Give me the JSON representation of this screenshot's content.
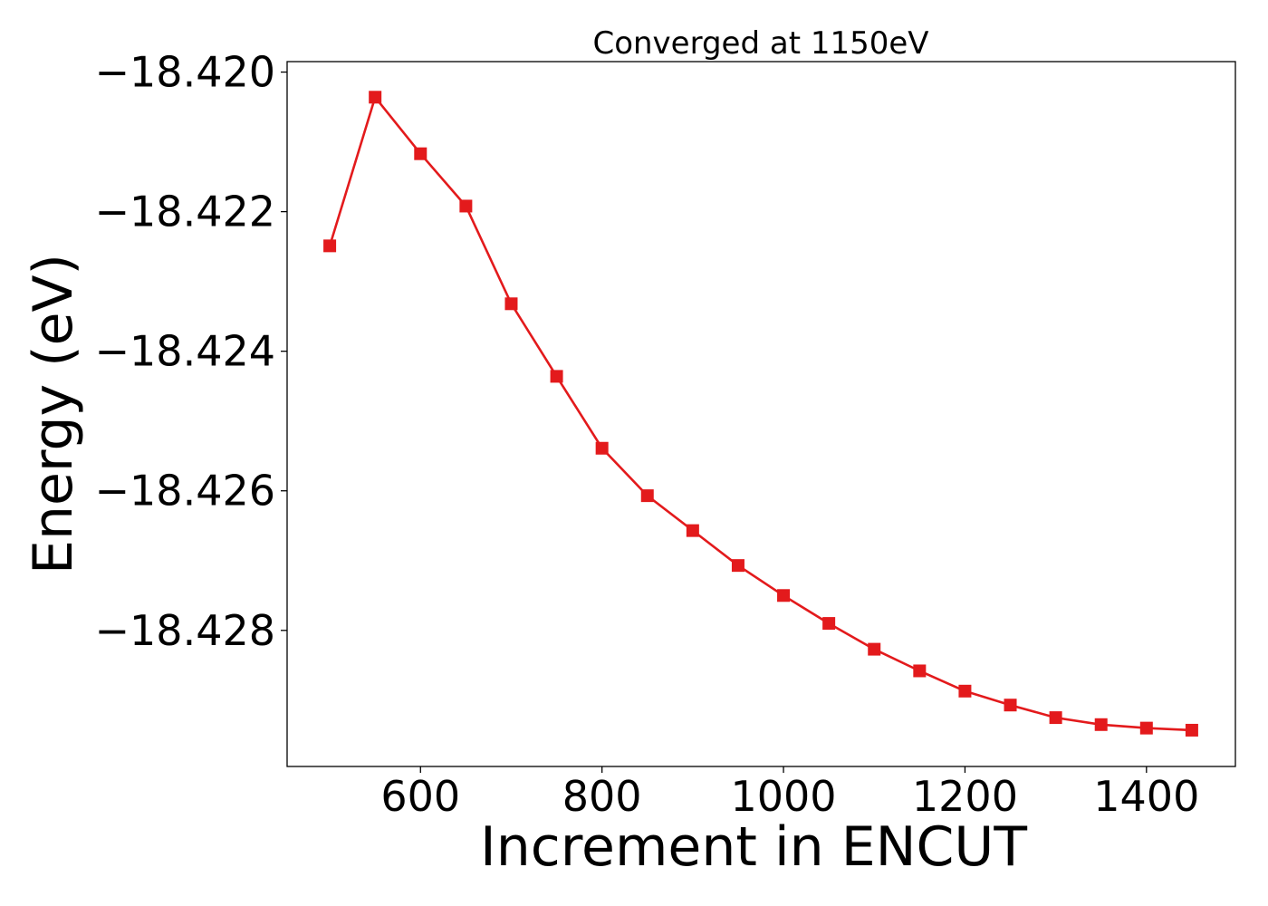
{
  "chart_data": {
    "type": "line",
    "title": "Converged at 1150eV",
    "xlabel": "Increment in ENCUT",
    "ylabel": "Energy (eV)",
    "xlim": [
      453,
      1498
    ],
    "ylim": [
      -18.42995,
      -18.41985
    ],
    "x_ticks": [
      600,
      800,
      1000,
      1200,
      1400
    ],
    "y_ticks": [
      -18.42,
      -18.422,
      -18.424,
      -18.426,
      -18.428
    ],
    "x_tick_labels": [
      "600",
      "800",
      "1000",
      "1200",
      "1400"
    ],
    "y_tick_labels": [
      "−18.420",
      "−18.422",
      "−18.424",
      "−18.426",
      "−18.428"
    ],
    "grid": false,
    "series": [
      {
        "color": "#e31a1c",
        "marker": "square",
        "x": [
          500,
          550,
          600,
          650,
          700,
          750,
          800,
          850,
          900,
          950,
          1000,
          1050,
          1100,
          1150,
          1200,
          1250,
          1300,
          1350,
          1400,
          1450
        ],
        "y": [
          -18.42249,
          -18.42036,
          -18.42117,
          -18.42192,
          -18.42332,
          -18.42436,
          -18.42539,
          -18.42607,
          -18.42657,
          -18.42707,
          -18.4275,
          -18.4279,
          -18.42827,
          -18.42858,
          -18.42887,
          -18.42907,
          -18.42925,
          -18.42935,
          -18.4294,
          -18.42943
        ]
      }
    ]
  }
}
